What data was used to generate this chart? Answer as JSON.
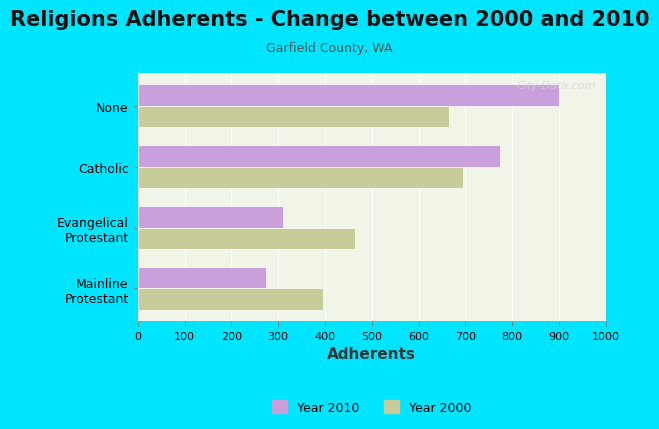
{
  "title": "Religions Adherents - Change between 2000 and 2010",
  "subtitle": "Garfield County, WA",
  "categories": [
    "Mainline\nProtestant",
    "Evangelical\nProtestant",
    "Catholic",
    "None"
  ],
  "year2010": [
    275,
    310,
    775,
    900
  ],
  "year2000": [
    395,
    465,
    695,
    665
  ],
  "color2010": "#c9a0dc",
  "color2000": "#c8cc9a",
  "xlabel": "Adherents",
  "xlim": [
    0,
    1000
  ],
  "xticks": [
    0,
    100,
    200,
    300,
    400,
    500,
    600,
    700,
    800,
    900,
    1000
  ],
  "background_outer": "#00e5ff",
  "background_inner": "#f0f5e8",
  "title_fontsize": 15,
  "subtitle_fontsize": 9,
  "xlabel_fontsize": 11,
  "watermark": "City-Data.com"
}
